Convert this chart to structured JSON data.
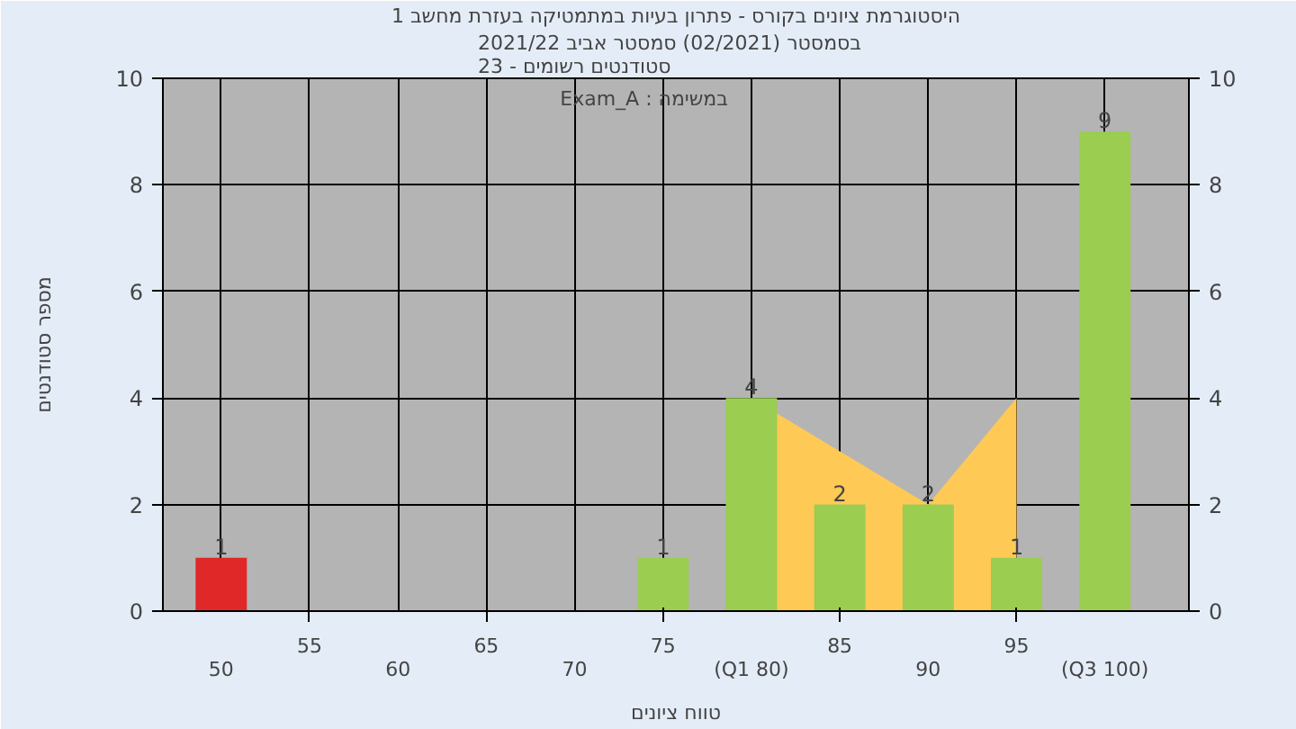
{
  "chart_data": {
    "type": "bar",
    "title": "היסטוגרמת ציונים בקורס - פתרון בעיות במתמטיקה בעזרת מחשב 1",
    "subtitle": "בסמסטר  (02/2021)  סמסטר אביב 2021/22\nסטודנטים רשומים - 23",
    "xlabel": "טווח ציונים",
    "ylabel": "מספר סטודנטים",
    "annotations": [
      "Exam_A : במשימה"
    ],
    "categories": [
      "50",
      "55",
      "60",
      "65",
      "70",
      "75",
      "(Q1 80)",
      "85",
      "90",
      "95",
      "(Q3 100)"
    ],
    "series": [
      {
        "type": "area",
        "color": "#ffc955",
        "values": [
          null,
          null,
          null,
          null,
          null,
          null,
          4,
          3,
          2,
          4,
          null
        ]
      },
      {
        "colors": [
          "#e02828",
          "#9acd50",
          "#9acd50",
          "#9acd50",
          "#9acd50",
          "#9acd50",
          "#9acd50",
          "#9acd50",
          "#9acd50",
          "#9acd50",
          "#9acd50"
        ],
        "values": [
          1,
          0,
          0,
          0,
          0,
          1,
          4,
          2,
          2,
          1,
          9
        ],
        "value_labels": [
          "1",
          null,
          null,
          null,
          null,
          "1",
          "4",
          "2",
          "2",
          "1",
          "9"
        ]
      }
    ],
    "ylim": [
      0,
      10
    ],
    "yticks": [
      0,
      2,
      4,
      6,
      8,
      10
    ],
    "y2lim": [
      0,
      10
    ],
    "y2ticks": [
      0,
      2,
      4,
      6,
      8,
      10
    ],
    "grid": true
  }
}
